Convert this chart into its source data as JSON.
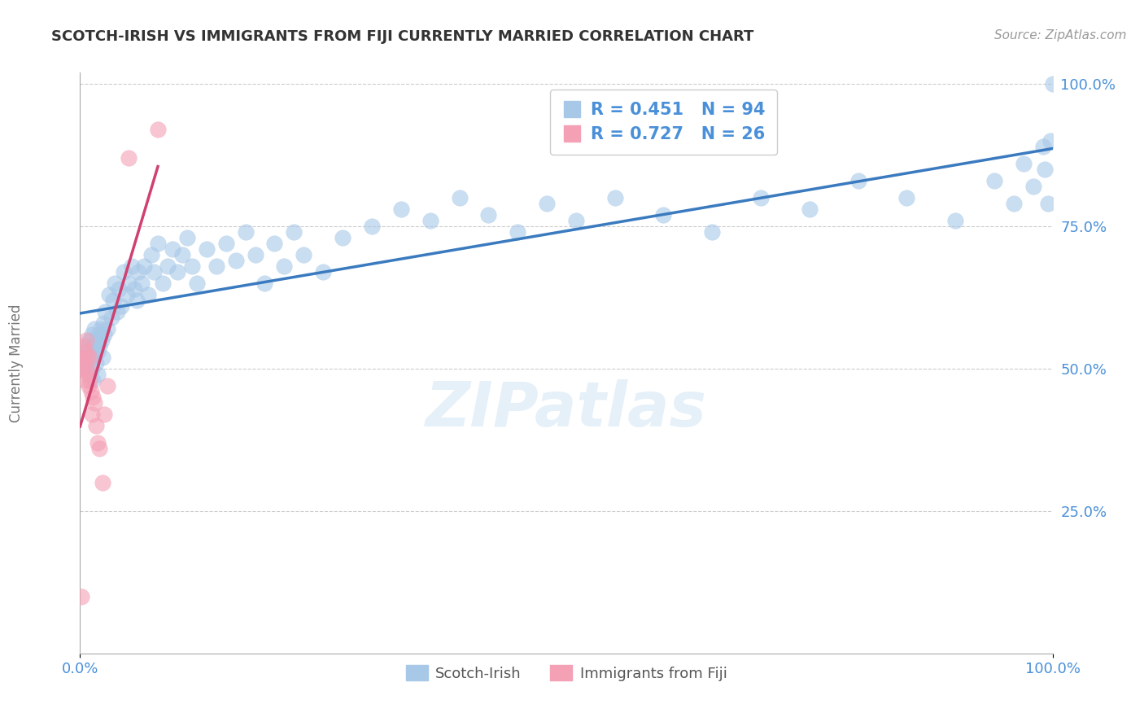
{
  "title": "SCOTCH-IRISH VS IMMIGRANTS FROM FIJI CURRENTLY MARRIED CORRELATION CHART",
  "source_text": "Source: ZipAtlas.com",
  "ylabel": "Currently Married",
  "legend_label1": "Scotch-Irish",
  "legend_label2": "Immigrants from Fiji",
  "r1": 0.451,
  "n1": 94,
  "r2": 0.727,
  "n2": 26,
  "watermark": "ZIPatlas",
  "blue_color": "#a8c8e8",
  "pink_color": "#f4a0b5",
  "blue_line_color": "#3a7abf",
  "pink_line_color": "#d04070",
  "text_blue": "#4a90d9",
  "background": "#ffffff",
  "grid_color": "#cccccc",
  "title_color": "#333333",
  "xlim": [
    0.0,
    1.0
  ],
  "ylim": [
    0.0,
    1.0
  ],
  "ytick_vals": [
    0.25,
    0.5,
    0.75,
    1.0
  ],
  "ytick_labels": [
    "25.0%",
    "50.0%",
    "75.0%",
    "100.0%"
  ],
  "blue_x": [
    0.003,
    0.005,
    0.007,
    0.008,
    0.009,
    0.01,
    0.01,
    0.011,
    0.012,
    0.012,
    0.013,
    0.013,
    0.014,
    0.015,
    0.015,
    0.016,
    0.017,
    0.018,
    0.018,
    0.019,
    0.02,
    0.021,
    0.022,
    0.023,
    0.024,
    0.025,
    0.026,
    0.028,
    0.03,
    0.032,
    0.034,
    0.036,
    0.038,
    0.04,
    0.042,
    0.045,
    0.048,
    0.05,
    0.053,
    0.056,
    0.058,
    0.06,
    0.063,
    0.066,
    0.07,
    0.073,
    0.076,
    0.08,
    0.085,
    0.09,
    0.095,
    0.1,
    0.105,
    0.11,
    0.115,
    0.12,
    0.13,
    0.14,
    0.15,
    0.16,
    0.17,
    0.18,
    0.19,
    0.2,
    0.21,
    0.22,
    0.23,
    0.25,
    0.27,
    0.3,
    0.33,
    0.36,
    0.39,
    0.42,
    0.45,
    0.48,
    0.51,
    0.55,
    0.6,
    0.65,
    0.7,
    0.75,
    0.8,
    0.85,
    0.9,
    0.94,
    0.96,
    0.97,
    0.98,
    0.99,
    0.992,
    0.995,
    0.998,
    1.0
  ],
  "blue_y": [
    0.52,
    0.5,
    0.54,
    0.51,
    0.53,
    0.49,
    0.55,
    0.52,
    0.5,
    0.56,
    0.48,
    0.54,
    0.52,
    0.53,
    0.57,
    0.51,
    0.55,
    0.53,
    0.49,
    0.56,
    0.54,
    0.57,
    0.55,
    0.52,
    0.58,
    0.56,
    0.6,
    0.57,
    0.63,
    0.59,
    0.62,
    0.65,
    0.6,
    0.64,
    0.61,
    0.67,
    0.63,
    0.65,
    0.68,
    0.64,
    0.62,
    0.67,
    0.65,
    0.68,
    0.63,
    0.7,
    0.67,
    0.72,
    0.65,
    0.68,
    0.71,
    0.67,
    0.7,
    0.73,
    0.68,
    0.65,
    0.71,
    0.68,
    0.72,
    0.69,
    0.74,
    0.7,
    0.65,
    0.72,
    0.68,
    0.74,
    0.7,
    0.67,
    0.73,
    0.75,
    0.78,
    0.76,
    0.8,
    0.77,
    0.74,
    0.79,
    0.76,
    0.8,
    0.77,
    0.74,
    0.8,
    0.78,
    0.83,
    0.8,
    0.76,
    0.83,
    0.79,
    0.86,
    0.82,
    0.89,
    0.85,
    0.79,
    0.9,
    1.0
  ],
  "pink_x": [
    0.001,
    0.002,
    0.003,
    0.004,
    0.005,
    0.006,
    0.006,
    0.007,
    0.007,
    0.008,
    0.009,
    0.01,
    0.01,
    0.011,
    0.012,
    0.013,
    0.015,
    0.016,
    0.018,
    0.02,
    0.023,
    0.025,
    0.028,
    0.001,
    0.05,
    0.08
  ],
  "pink_y": [
    0.52,
    0.5,
    0.54,
    0.51,
    0.48,
    0.55,
    0.53,
    0.52,
    0.5,
    0.49,
    0.47,
    0.52,
    0.48,
    0.46,
    0.42,
    0.45,
    0.44,
    0.4,
    0.37,
    0.36,
    0.3,
    0.42,
    0.47,
    0.1,
    0.87,
    0.92
  ],
  "blue_line_start_y": 0.505,
  "blue_line_end_y": 0.808,
  "pink_line_start_y": 0.5,
  "pink_line_end_x": 0.085,
  "pink_line_end_y": 0.93
}
